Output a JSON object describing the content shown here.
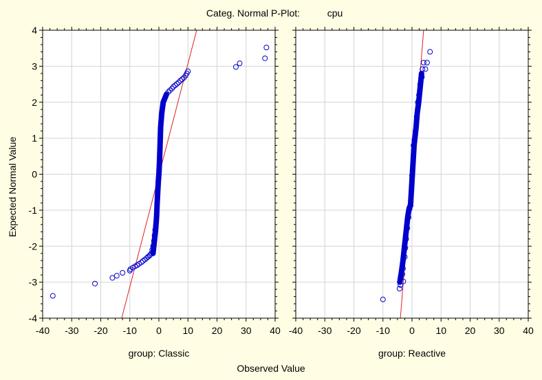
{
  "chart_data": {
    "type": "scatter",
    "title": "Categ. Normal P-Plot:",
    "variable": "cpu",
    "xlabel": "Observed Value",
    "ylabel": "Expected Normal Value",
    "ylim": [
      -4,
      4
    ],
    "yticks": [
      "4",
      "3",
      "2",
      "1",
      "0",
      "-1",
      "-2",
      "-3",
      "-4"
    ],
    "grid": true,
    "colors": {
      "background": "#fffde3",
      "plot_bg": "#ffffff",
      "points": "#0000cc",
      "fit_line": "#e02020",
      "grid": "#d4d4d4"
    },
    "panels": [
      {
        "label": "group: Classic",
        "xlim": [
          -40,
          40
        ],
        "xticks": [
          "-40",
          "-30",
          "-20",
          "-10",
          "0",
          "10",
          "20",
          "30",
          "40"
        ],
        "fit_line": [
          [
            -12.8,
            -4.0
          ],
          [
            13.0,
            4.0
          ]
        ],
        "dense_segment": {
          "x": [
            -2.0,
            -1.2,
            -0.8,
            -0.6,
            -0.4,
            -0.2,
            0.0,
            0.2,
            0.4,
            0.6,
            1.0,
            1.5,
            2.5
          ],
          "y": [
            -2.2,
            -1.6,
            -1.2,
            -0.8,
            -0.5,
            -0.2,
            0.0,
            0.3,
            0.8,
            1.3,
            1.7,
            2.0,
            2.2
          ]
        },
        "points": [
          [
            -36.5,
            -3.38
          ],
          [
            -22.0,
            -3.04
          ],
          [
            -16.0,
            -2.88
          ],
          [
            -14.5,
            -2.82
          ],
          [
            -12.5,
            -2.74
          ],
          [
            -10.0,
            -2.68
          ],
          [
            -9.8,
            -2.64
          ],
          [
            -9.0,
            -2.6
          ],
          [
            -8.2,
            -2.56
          ],
          [
            -7.5,
            -2.53
          ],
          [
            -6.8,
            -2.49
          ],
          [
            -6.0,
            -2.45
          ],
          [
            -5.5,
            -2.41
          ],
          [
            -4.8,
            -2.37
          ],
          [
            -4.2,
            -2.33
          ],
          [
            -3.8,
            -2.3
          ],
          [
            -3.3,
            -2.27
          ],
          [
            -3.0,
            -2.24
          ],
          [
            -2.6,
            -2.2
          ],
          [
            -2.3,
            -2.1
          ],
          [
            -2.0,
            -2.0
          ],
          [
            -1.7,
            -1.85
          ],
          [
            -1.5,
            -1.7
          ],
          [
            -1.3,
            -1.55
          ],
          [
            2.6,
            2.22
          ],
          [
            3.2,
            2.28
          ],
          [
            3.8,
            2.33
          ],
          [
            4.5,
            2.38
          ],
          [
            5.0,
            2.43
          ],
          [
            5.6,
            2.47
          ],
          [
            6.2,
            2.51
          ],
          [
            6.8,
            2.55
          ],
          [
            7.4,
            2.6
          ],
          [
            8.0,
            2.64
          ],
          [
            8.6,
            2.68
          ],
          [
            9.2,
            2.74
          ],
          [
            9.6,
            2.8
          ],
          [
            10.0,
            2.86
          ],
          [
            26.5,
            2.98
          ],
          [
            27.8,
            3.08
          ],
          [
            36.5,
            3.22
          ],
          [
            37.0,
            3.52
          ]
        ]
      },
      {
        "label": "group: Reactive",
        "xlim": [
          -40,
          40
        ],
        "xticks": [
          "-40",
          "-30",
          "-20",
          "-10",
          "0",
          "10",
          "20",
          "30",
          "40"
        ],
        "fit_line": [
          [
            -4.0,
            -4.0
          ],
          [
            4.0,
            4.0
          ]
        ],
        "dense_segment": {
          "x": [
            -4.2,
            -3.6,
            -3.1,
            -2.7,
            -2.3,
            -1.9,
            -1.5,
            -1.0,
            -0.5,
            0.7,
            1.0,
            1.4,
            1.8,
            2.3,
            2.8,
            3.3
          ],
          "y": [
            -3.0,
            -2.7,
            -2.4,
            -2.1,
            -1.8,
            -1.5,
            -1.2,
            -0.95,
            -0.85,
            0.8,
            1.0,
            1.3,
            1.7,
            2.0,
            2.4,
            2.8
          ]
        },
        "points": [
          [
            -10.0,
            -3.48
          ],
          [
            -4.3,
            -3.18
          ],
          [
            -4.0,
            -3.08
          ],
          [
            -3.0,
            -2.98
          ],
          [
            -3.3,
            -2.78
          ],
          [
            -3.1,
            -2.62
          ],
          [
            -2.5,
            -2.3
          ],
          [
            -2.3,
            -2.05
          ],
          [
            -2.0,
            -1.8
          ],
          [
            -1.6,
            -1.5
          ],
          [
            -1.2,
            -1.2
          ],
          [
            -0.8,
            -0.96
          ],
          [
            -0.5,
            -0.88
          ],
          [
            0.0,
            -0.04
          ],
          [
            0.5,
            0.8
          ],
          [
            0.8,
            0.95
          ],
          [
            1.2,
            1.2
          ],
          [
            1.6,
            1.6
          ],
          [
            2.0,
            2.0
          ],
          [
            2.4,
            2.2
          ],
          [
            2.8,
            2.5
          ],
          [
            3.4,
            2.7
          ],
          [
            3.6,
            2.92
          ],
          [
            4.0,
            3.1
          ],
          [
            4.6,
            2.92
          ],
          [
            5.2,
            3.1
          ],
          [
            6.2,
            3.4
          ]
        ]
      }
    ]
  }
}
